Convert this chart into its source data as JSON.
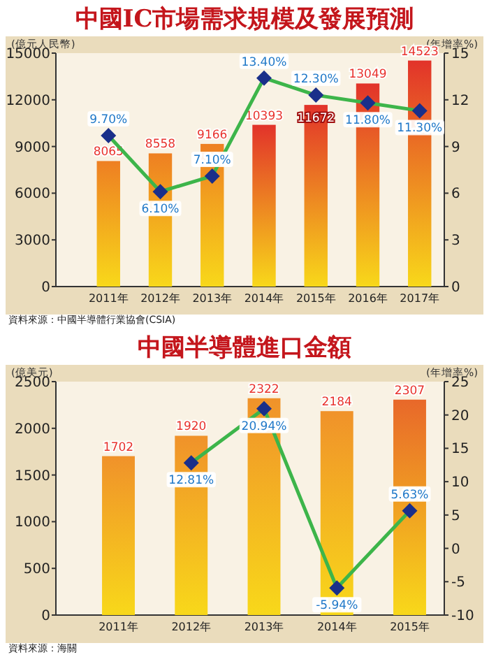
{
  "chart_data": [
    {
      "type": "bar",
      "title": "中國IC市場需求規模及發展預測",
      "ylabel": "(億元人民幣)",
      "y2label": "(年增率%)",
      "categories": [
        "2011年",
        "2012年",
        "2013年",
        "2014年",
        "2015年",
        "2016年",
        "2017年"
      ],
      "ylim": [
        0,
        15000
      ],
      "yticks": [
        0,
        3000,
        6000,
        9000,
        12000,
        15000
      ],
      "y2lim": [
        0,
        15
      ],
      "y2ticks": [
        0,
        3,
        6,
        9,
        12,
        15
      ],
      "marker": "diamond",
      "series": [
        {
          "colors": [
            "#ee7f22",
            "#ee7f22",
            "#ee7f22",
            "#e2332a",
            "#e2332a",
            "#e2332a",
            "#e2332a"
          ],
          "values": [
            8065,
            8558,
            9166,
            10393,
            11672,
            13049,
            14523
          ],
          "value_labels": [
            "8065",
            "8558",
            "9166",
            "10393",
            "11672",
            "13049",
            "14523"
          ]
        },
        {
          "type": "line",
          "axis": "y2",
          "color": "#3db54a",
          "values": [
            9.7,
            6.1,
            7.1,
            13.4,
            12.3,
            11.8,
            11.3
          ],
          "value_labels": [
            "9.70%",
            "6.10%",
            "7.10%",
            "13.40%",
            "12.30%",
            "11.80%",
            "11.30%"
          ]
        }
      ],
      "annotations": [
        "資料來源：中國半導體行業協會(CSIA)"
      ]
    },
    {
      "type": "bar",
      "title": "中國半導體進口金額",
      "ylabel": "(億美元)",
      "y2label": "(年增率%)",
      "categories": [
        "2011年",
        "2012年",
        "2013年",
        "2014年",
        "2015年"
      ],
      "ylim": [
        0,
        2500
      ],
      "yticks": [
        0,
        500,
        1000,
        1500,
        2000,
        2500
      ],
      "y2lim": [
        -10,
        25
      ],
      "y2ticks": [
        -10,
        -5,
        0,
        5,
        10,
        15,
        20,
        25
      ],
      "marker": "diamond",
      "series": [
        {
          "colors": [
            "#f0922a",
            "#f0922a",
            "#f0922a",
            "#f0922a",
            "#e8682a"
          ],
          "values": [
            1702,
            1920,
            2322,
            2184,
            2307
          ],
          "value_labels": [
            "1702",
            "1920",
            "2322",
            "2184",
            "2307"
          ]
        },
        {
          "type": "line",
          "axis": "y2",
          "color": "#3db54a",
          "values": [
            null,
            12.81,
            20.94,
            -5.94,
            5.63
          ],
          "value_labels": [
            null,
            "12.81%",
            "20.94%",
            "-5.94%",
            "5.63%"
          ]
        }
      ],
      "annotations": [
        "資料來源：海關"
      ]
    }
  ]
}
